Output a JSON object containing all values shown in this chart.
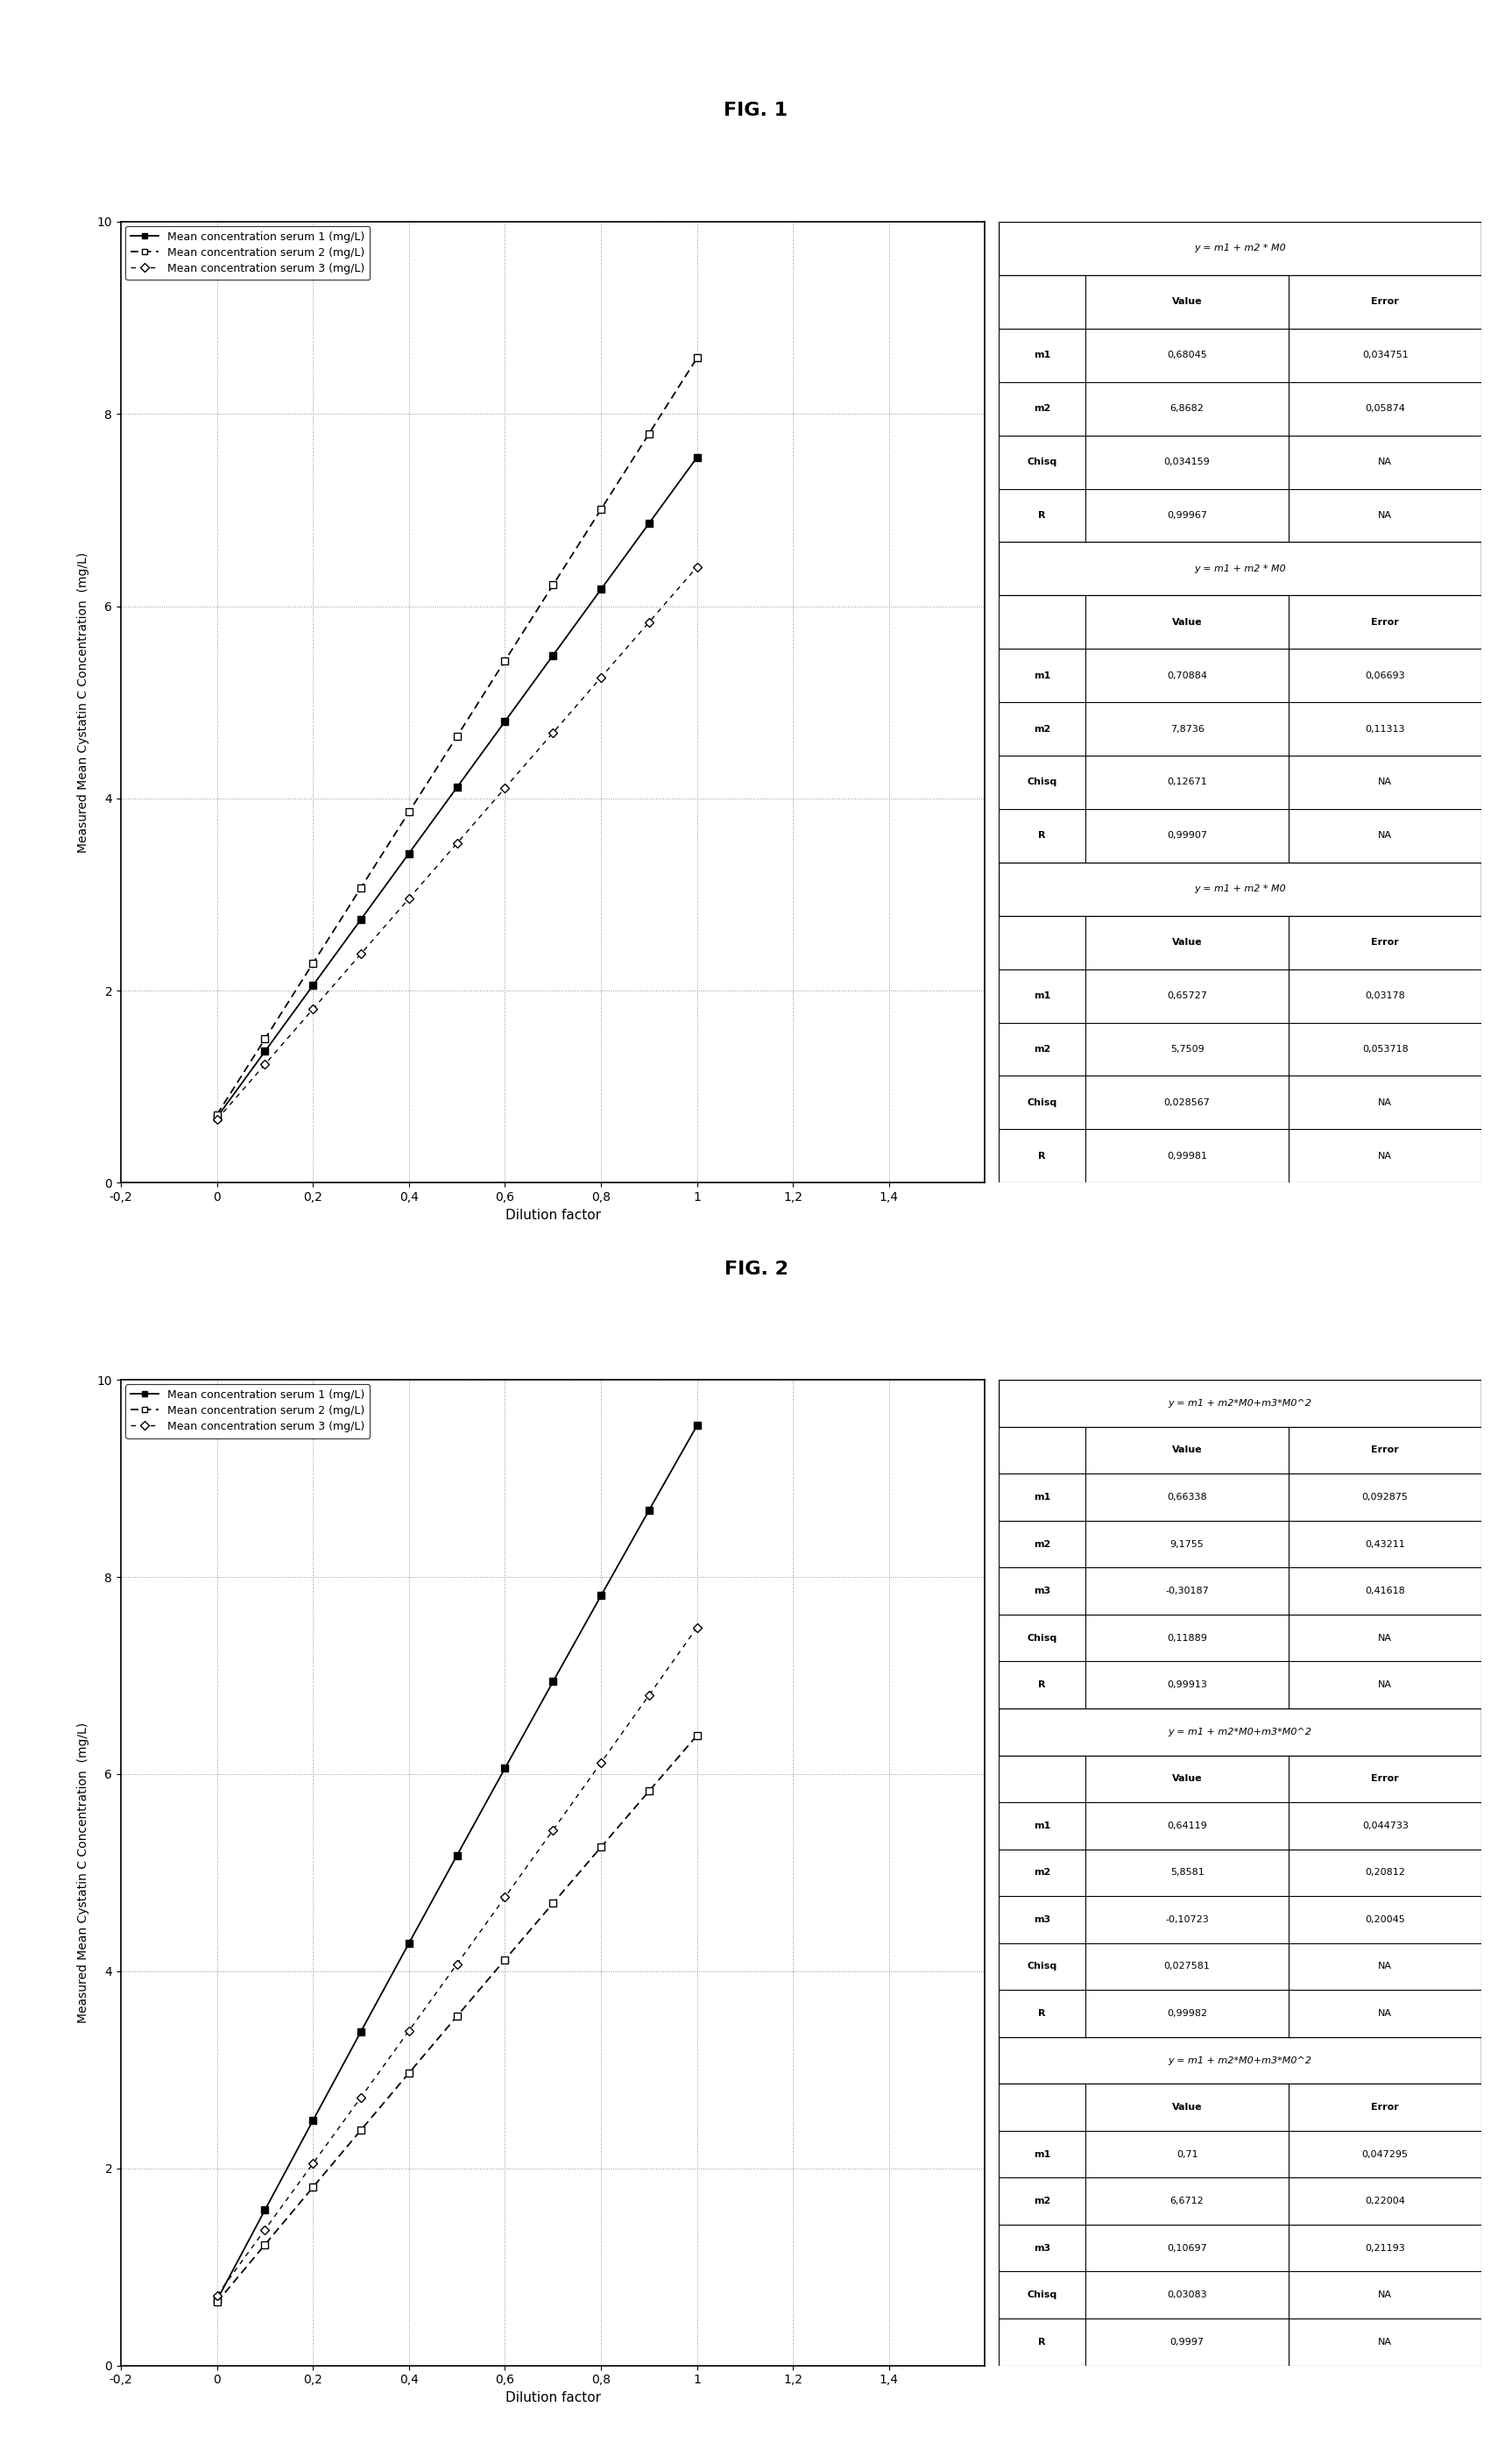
{
  "fig1_title": "FIG. 1",
  "fig2_title": "FIG. 2",
  "xlabel": "Dilution factor",
  "ylabel": "Measured Mean Cystatin C Concentration  (mg/L)",
  "xlim": [
    -0.2,
    1.6
  ],
  "ylim": [
    0,
    10
  ],
  "xticks": [
    -0.2,
    0,
    0.2,
    0.4,
    0.6,
    0.8,
    1.0,
    1.2,
    1.4
  ],
  "yticks": [
    0,
    2,
    4,
    6,
    8,
    10
  ],
  "serum1_x": [
    0.0,
    0.1,
    0.2,
    0.3,
    0.4,
    0.5,
    0.6,
    0.7,
    0.8,
    0.9,
    1.0
  ],
  "serum2_x": [
    0.0,
    0.1,
    0.2,
    0.3,
    0.4,
    0.5,
    0.6,
    0.7,
    0.8,
    0.9,
    1.0
  ],
  "serum3_x": [
    0.0,
    0.1,
    0.2,
    0.3,
    0.4,
    0.5,
    0.6,
    0.7,
    0.8,
    0.9,
    1.0
  ],
  "fig1_m1": [
    0.68045,
    6.8682
  ],
  "fig1_m2": [
    0.70884,
    7.8736
  ],
  "fig1_m3": [
    0.65727,
    5.7509
  ],
  "fig2_m1": [
    0.66338,
    9.1755,
    -0.30187
  ],
  "fig2_m2": [
    0.64119,
    5.8581,
    -0.10723
  ],
  "fig2_m3": [
    0.71,
    6.6712,
    0.10697
  ],
  "fig1_table1_title": "y = m1 + m2 * M0",
  "fig1_table1": [
    [
      "",
      "Value",
      "Error"
    ],
    [
      "m1",
      "0,68045",
      "0,034751"
    ],
    [
      "m2",
      "6,8682",
      "0,05874"
    ],
    [
      "Chisq",
      "0,034159",
      "NA"
    ],
    [
      "R",
      "0,99967",
      "NA"
    ]
  ],
  "fig1_table2_title": "y = m1 + m2 * M0",
  "fig1_table2": [
    [
      "",
      "Value",
      "Error"
    ],
    [
      "m1",
      "0,70884",
      "0,06693"
    ],
    [
      "m2",
      "7,8736",
      "0,11313"
    ],
    [
      "Chisq",
      "0,12671",
      "NA"
    ],
    [
      "R",
      "0,99907",
      "NA"
    ]
  ],
  "fig1_table3_title": "y = m1 + m2 * M0",
  "fig1_table3": [
    [
      "",
      "Value",
      "Error"
    ],
    [
      "m1",
      "0,65727",
      "0,03178"
    ],
    [
      "m2",
      "5,7509",
      "0,053718"
    ],
    [
      "Chisq",
      "0,028567",
      "NA"
    ],
    [
      "R",
      "0,99981",
      "NA"
    ]
  ],
  "fig2_table1_title": "y = m1 + m2*M0+m3*M0^2",
  "fig2_table1": [
    [
      "",
      "Value",
      "Error"
    ],
    [
      "m1",
      "0,66338",
      "0,092875"
    ],
    [
      "m2",
      "9,1755",
      "0,43211"
    ],
    [
      "m3",
      "-0,30187",
      "0,41618"
    ],
    [
      "Chisq",
      "0,11889",
      "NA"
    ],
    [
      "R",
      "0,99913",
      "NA"
    ]
  ],
  "fig2_table2_title": "y = m1 + m2*M0+m3*M0^2",
  "fig2_table2": [
    [
      "",
      "Value",
      "Error"
    ],
    [
      "m1",
      "0,64119",
      "0,044733"
    ],
    [
      "m2",
      "5,8581",
      "0,20812"
    ],
    [
      "m3",
      "-0,10723",
      "0,20045"
    ],
    [
      "Chisq",
      "0,027581",
      "NA"
    ],
    [
      "R",
      "0,99982",
      "NA"
    ]
  ],
  "fig2_table3_title": "y = m1 + m2*M0+m3*M0^2",
  "fig2_table3": [
    [
      "",
      "Value",
      "Error"
    ],
    [
      "m1",
      "0,71",
      "0,047295"
    ],
    [
      "m2",
      "6,6712",
      "0,22004"
    ],
    [
      "m3",
      "0,10697",
      "0,21193"
    ],
    [
      "Chisq",
      "0,03083",
      "NA"
    ],
    [
      "R",
      "0,9997",
      "NA"
    ]
  ]
}
